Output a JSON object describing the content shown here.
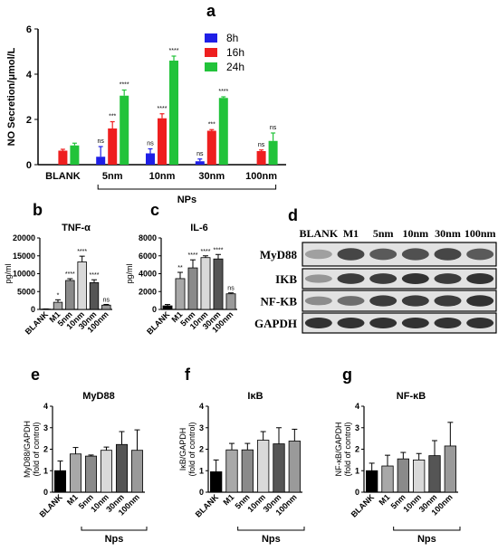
{
  "panels": {
    "a": "a",
    "b": "b",
    "c": "c",
    "d": "d",
    "e": "e",
    "f": "f",
    "g": "g"
  },
  "colors": {
    "h8": "#1f1fe6",
    "h16": "#ee1f1f",
    "h24": "#22c33a",
    "blank": "#000000",
    "m1": "#a8a8a8",
    "nm5": "#8a8a8a",
    "nm10": "#d9d9d9",
    "nm30": "#555555",
    "nm100": "#9a9a9a"
  },
  "chart_data": [
    {
      "id": "a",
      "type": "bar",
      "ylabel": "NO Secretion/μmol/L",
      "ylim": [
        0,
        6
      ],
      "yticks": [
        0,
        2,
        4,
        6
      ],
      "categories": [
        "BLANK",
        "5nm",
        "10nm",
        "30nm",
        "100nm"
      ],
      "group_label": "NPs",
      "legend_position": "top-right",
      "series": [
        {
          "name": "8h",
          "values": [
            null,
            0.35,
            0.5,
            0.15,
            null
          ],
          "errors": [
            null,
            0.45,
            0.2,
            0.1,
            null
          ],
          "sig": [
            null,
            "ns",
            "ns",
            "ns",
            null
          ]
        },
        {
          "name": "16h",
          "values": [
            0.62,
            1.6,
            2.05,
            1.5,
            0.6
          ],
          "errors": [
            0.06,
            0.3,
            0.2,
            0.05,
            0.05
          ],
          "sig": [
            null,
            "***",
            "****",
            "***",
            "ns"
          ]
        },
        {
          "name": "24h",
          "values": [
            0.85,
            3.05,
            4.6,
            2.95,
            1.05
          ],
          "errors": [
            0.1,
            0.25,
            0.2,
            0.05,
            0.35
          ],
          "sig": [
            null,
            "****",
            "****",
            "****",
            "ns"
          ]
        }
      ]
    },
    {
      "id": "b",
      "type": "bar",
      "title": "TNF-α",
      "ylabel": "pg/ml",
      "ylim": [
        0,
        20000
      ],
      "yticks": [
        0,
        5000,
        10000,
        15000,
        20000
      ],
      "categories": [
        "BLANK",
        "M1",
        "5nm",
        "10nm",
        "30nm",
        "100nm"
      ],
      "values": [
        100,
        2000,
        8100,
        13300,
        7500,
        1200
      ],
      "errors": [
        50,
        700,
        500,
        1600,
        800,
        200
      ],
      "sig": [
        "",
        "*",
        "****",
        "****",
        "****",
        "ns"
      ]
    },
    {
      "id": "c",
      "type": "bar",
      "title": "IL-6",
      "ylabel": "pg/ml",
      "ylim": [
        0,
        8000
      ],
      "yticks": [
        0,
        2000,
        4000,
        6000,
        8000
      ],
      "categories": [
        "BLANK",
        "M1",
        "5nm",
        "10nm",
        "30nm",
        "100nm"
      ],
      "values": [
        400,
        3450,
        4650,
        5800,
        5650,
        1750
      ],
      "errors": [
        150,
        700,
        900,
        200,
        500,
        100
      ],
      "sig": [
        "",
        "**",
        "****",
        "****",
        "****",
        "ns"
      ]
    },
    {
      "id": "e",
      "type": "bar",
      "title": "MyD88",
      "ylabel": "MyD88/GAPDH",
      "ylabel2": "(fold of control)",
      "ylim": [
        0,
        4
      ],
      "yticks": [
        0,
        1,
        2,
        3,
        4
      ],
      "categories": [
        "BLANK",
        "M1",
        "5nm",
        "10nm",
        "30nm",
        "100nm"
      ],
      "group_label": "Nps",
      "values": [
        1.0,
        1.78,
        1.68,
        1.95,
        2.22,
        1.95
      ],
      "errors": [
        0.45,
        0.3,
        0.05,
        0.15,
        0.6,
        0.95
      ]
    },
    {
      "id": "f",
      "type": "bar",
      "title": "IκB",
      "ylabel": "IκB/GAPDH",
      "ylabel2": "(fold of control)",
      "ylim": [
        0,
        4
      ],
      "yticks": [
        0,
        1,
        2,
        3,
        4
      ],
      "categories": [
        "BLANK",
        "M1",
        "5nm",
        "10nm",
        "30nm",
        "100nm"
      ],
      "group_label": "Nps",
      "values": [
        0.95,
        1.97,
        1.97,
        2.42,
        2.25,
        2.38
      ],
      "errors": [
        0.55,
        0.3,
        0.3,
        0.4,
        0.75,
        0.55
      ]
    },
    {
      "id": "g",
      "type": "bar",
      "title": "NF-κB",
      "ylabel": "NF-κB/GAPDH",
      "ylabel2": "(fold of control)",
      "ylim": [
        0,
        4
      ],
      "yticks": [
        0,
        1,
        2,
        3,
        4
      ],
      "categories": [
        "BLANK",
        "M1",
        "5nm",
        "10nm",
        "30nm",
        "100nm"
      ],
      "group_label": "Nps",
      "values": [
        1.0,
        1.22,
        1.55,
        1.5,
        1.7,
        2.15
      ],
      "errors": [
        0.35,
        0.5,
        0.3,
        0.3,
        0.7,
        1.1
      ]
    }
  ],
  "blot": {
    "lanes": [
      "BLANK",
      "M1",
      "5nm",
      "10nm",
      "30nm",
      "100nm"
    ],
    "rows": [
      {
        "label": "MyD88",
        "intensity": [
          0.35,
          0.8,
          0.7,
          0.75,
          0.8,
          0.7
        ]
      },
      {
        "label": "IKB",
        "intensity": [
          0.4,
          0.85,
          0.85,
          0.9,
          0.85,
          0.9
        ]
      },
      {
        "label": "NF-KB",
        "intensity": [
          0.45,
          0.6,
          0.85,
          0.85,
          0.85,
          0.9
        ]
      },
      {
        "label": "GAPDH",
        "intensity": [
          0.9,
          0.9,
          0.9,
          0.9,
          0.9,
          0.9
        ]
      }
    ]
  }
}
